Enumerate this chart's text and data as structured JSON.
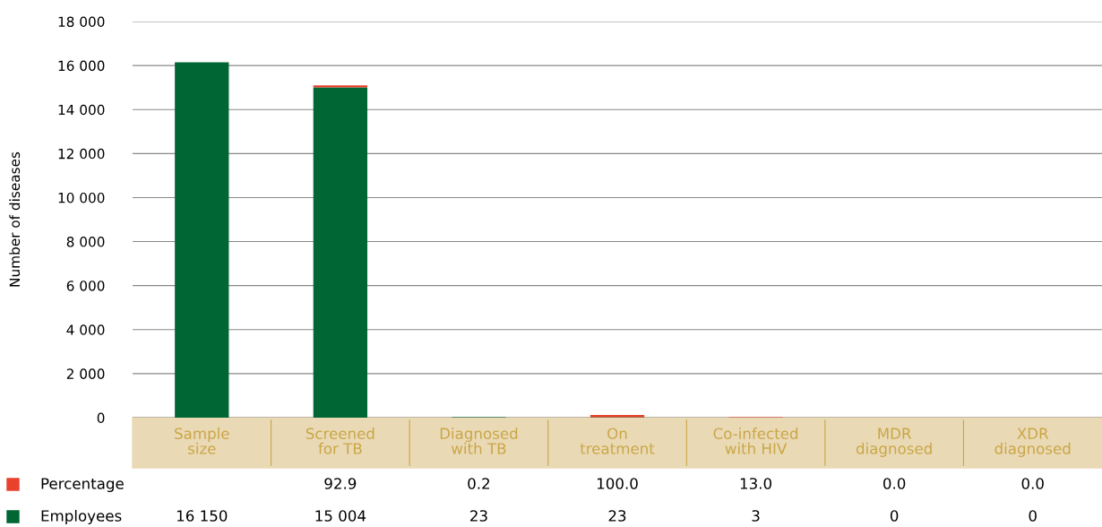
{
  "chart_data": {
    "type": "bar",
    "stacked": true,
    "ylabel": "Number of diseases",
    "categories": [
      "Sample\nsize",
      "Screened\nfor TB",
      "Diagnosed\nwith TB",
      "On\ntreatment",
      "Co-infected\nwith HIV",
      "MDR\ndiagnosed",
      "XDR\ndiagnosed"
    ],
    "series": [
      {
        "name": "Employees",
        "color": "#006633",
        "values": [
          16150,
          15004,
          23,
          23,
          3,
          0,
          0
        ],
        "value_labels": [
          "16 150",
          "15 004",
          "23",
          "23",
          "3",
          "0",
          "0"
        ]
      },
      {
        "name": "Percentage",
        "color": "#e8412c",
        "values": [
          null,
          92.9,
          0.2,
          100.0,
          13.0,
          0.0,
          0.0
        ],
        "value_labels": [
          null,
          "92.9",
          "0.2",
          "100.0",
          "13.0",
          "0.0",
          "0.0"
        ]
      }
    ],
    "ylim": [
      0,
      18000
    ],
    "yticks": [
      {
        "value": 0,
        "label": "0"
      },
      {
        "value": 2000,
        "label": "2 000"
      },
      {
        "value": 4000,
        "label": "4 000"
      },
      {
        "value": 6000,
        "label": "6 000"
      },
      {
        "value": 8000,
        "label": "8 000"
      },
      {
        "value": 10000,
        "label": "10 000"
      },
      {
        "value": 12000,
        "label": "12 000"
      },
      {
        "value": 14000,
        "label": "14 000"
      },
      {
        "value": 16000,
        "label": "16 000"
      },
      {
        "value": 18000,
        "label": "18 000"
      }
    ],
    "grid": "y",
    "legend": "bottom"
  }
}
